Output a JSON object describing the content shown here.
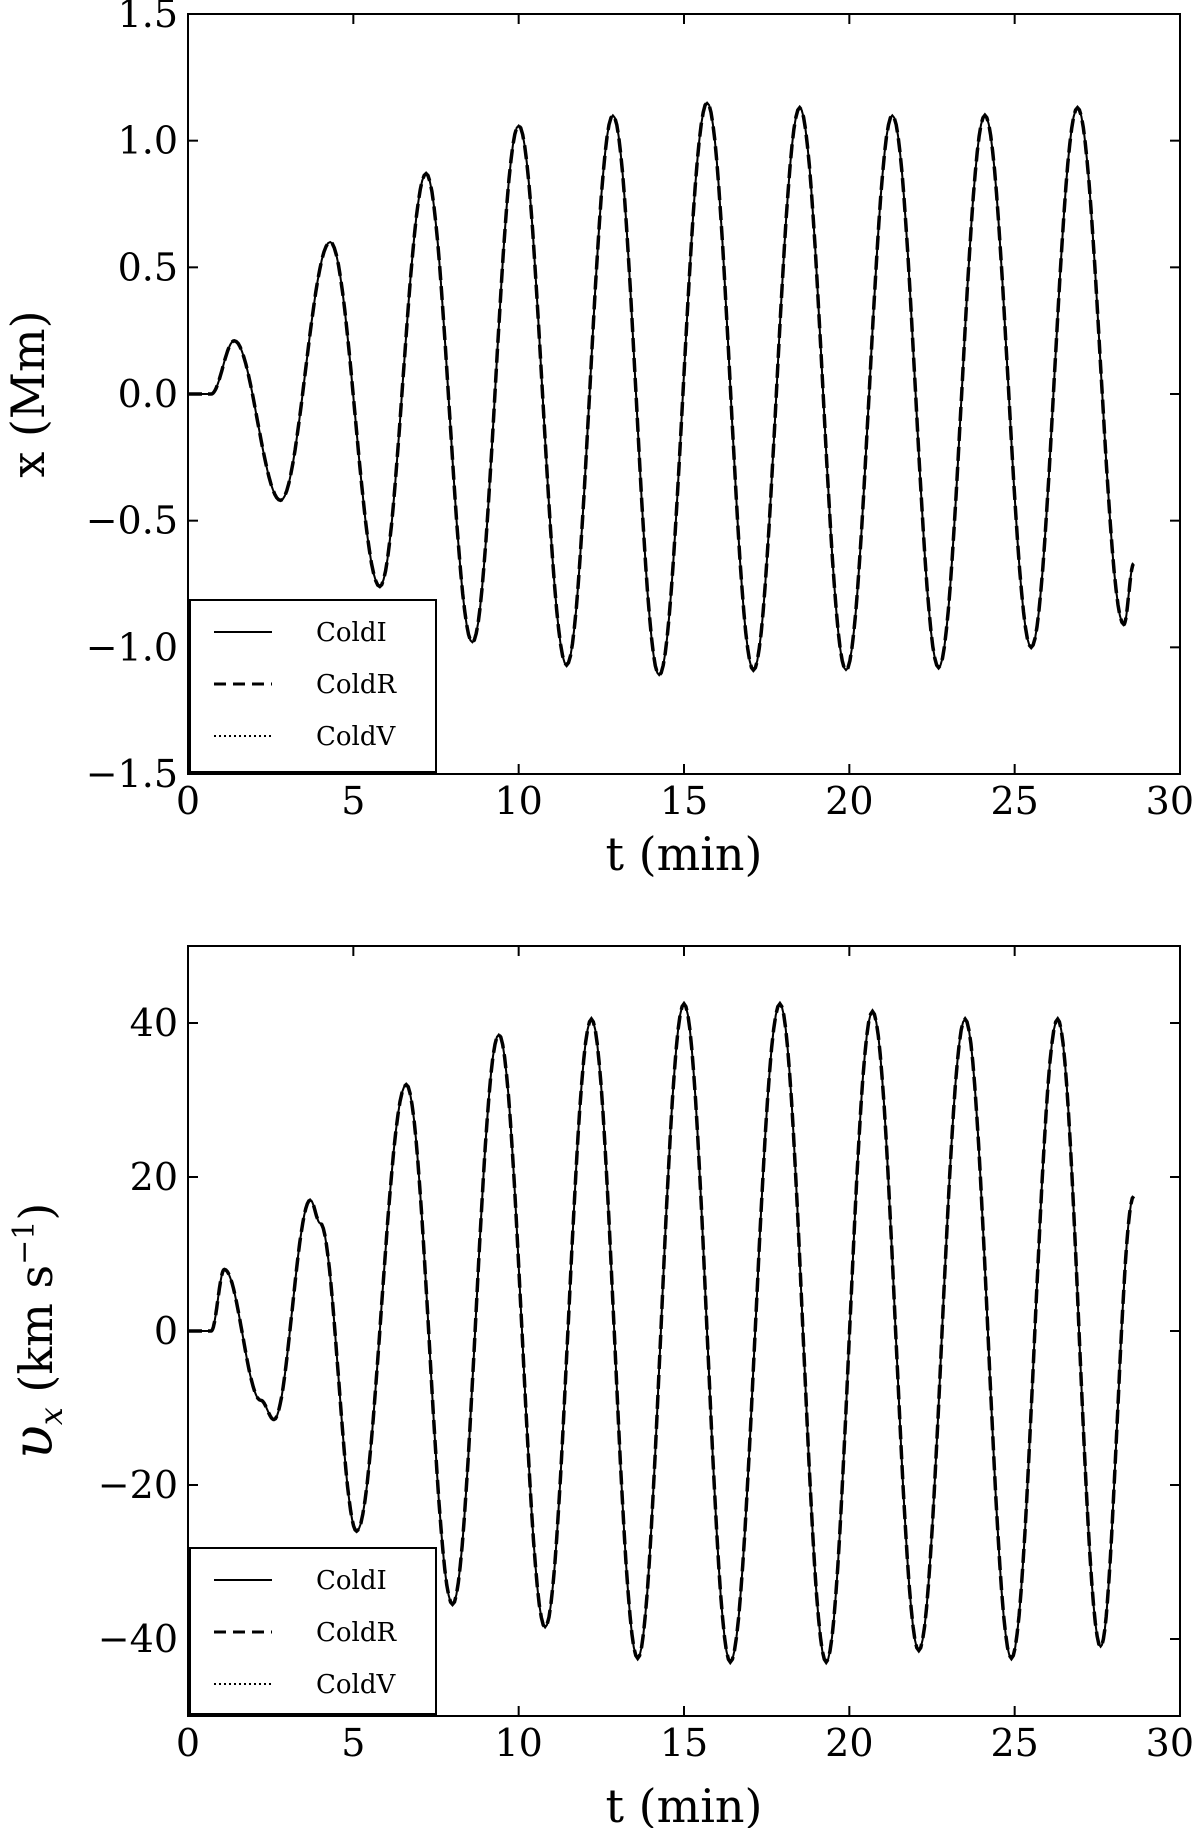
{
  "chart_data": [
    {
      "type": "line",
      "xlabel": "t (min)",
      "ylabel": "x (Mm)",
      "xlim": [
        0,
        30
      ],
      "ylim": [
        -1.5,
        1.5
      ],
      "xticks": [
        0,
        5,
        10,
        15,
        20,
        25,
        30
      ],
      "yticks": [
        -1.5,
        -1.0,
        -0.5,
        0.0,
        0.5,
        1.0,
        1.5
      ],
      "xtick_labels": [
        "0",
        "5",
        "10",
        "15",
        "20",
        "25",
        "30"
      ],
      "ytick_labels": [
        "−1.5",
        "−1.0",
        "−0.5",
        "0.0",
        "0.5",
        "1.0",
        "1.5"
      ],
      "grid": false,
      "legend_position": "lower-left",
      "series": [
        {
          "name": "ColdI",
          "style": "solid",
          "color": "#000000"
        },
        {
          "name": "ColdR",
          "style": "dashed",
          "color": "#000000"
        },
        {
          "name": "ColdV",
          "style": "dotted",
          "color": "#000000"
        }
      ],
      "x": [
        0,
        0.7,
        1.4,
        2.8,
        4.3,
        5.8,
        7.2,
        8.6,
        10.0,
        11.45,
        12.85,
        14.25,
        15.7,
        17.1,
        18.5,
        19.9,
        21.3,
        22.7,
        24.1,
        25.5,
        26.9,
        28.3,
        28.6
      ],
      "values": [
        0.0,
        0.0,
        0.21,
        -0.42,
        0.6,
        -0.76,
        0.87,
        -0.98,
        1.06,
        -1.07,
        1.1,
        -1.11,
        1.15,
        -1.09,
        1.13,
        -1.09,
        1.1,
        -1.08,
        1.1,
        -1.0,
        1.13,
        -0.91,
        -0.67
      ]
    },
    {
      "type": "line",
      "xlabel": "t (min)",
      "ylabel": "υx (km s⁻¹)",
      "ylabel_main": "υ",
      "ylabel_sub": "x",
      "ylabel_rest": " (km s",
      "ylabel_sup": "−1",
      "ylabel_end": ")",
      "xlim": [
        0,
        30
      ],
      "ylim": [
        -50,
        50
      ],
      "xticks": [
        0,
        5,
        10,
        15,
        20,
        25,
        30
      ],
      "yticks": [
        -40,
        -20,
        0,
        20,
        40
      ],
      "xtick_labels": [
        "0",
        "5",
        "10",
        "15",
        "20",
        "25",
        "30"
      ],
      "ytick_labels": [
        "−40",
        "−20",
        "0",
        "20",
        "40"
      ],
      "grid": false,
      "legend_position": "lower-left",
      "series": [
        {
          "name": "ColdI",
          "style": "solid",
          "color": "#000000"
        },
        {
          "name": "ColdR",
          "style": "dashed",
          "color": "#000000"
        },
        {
          "name": "ColdV",
          "style": "dotted",
          "color": "#000000"
        }
      ],
      "x": [
        0,
        0.7,
        1.1,
        2.2,
        2.6,
        3.7,
        4.0,
        5.1,
        6.6,
        8.0,
        9.4,
        10.8,
        12.2,
        13.6,
        15.0,
        16.4,
        17.9,
        19.3,
        20.7,
        22.1,
        23.5,
        24.9,
        26.3,
        27.6,
        28.6
      ],
      "values": [
        0,
        0,
        8,
        -9,
        -11.5,
        17,
        14,
        -26,
        32,
        -35.5,
        38.5,
        -38.5,
        40.5,
        -42.5,
        42.5,
        -43,
        42.5,
        -43,
        41.5,
        -41.5,
        40.5,
        -42.5,
        40.5,
        -41,
        17.5
      ]
    }
  ]
}
